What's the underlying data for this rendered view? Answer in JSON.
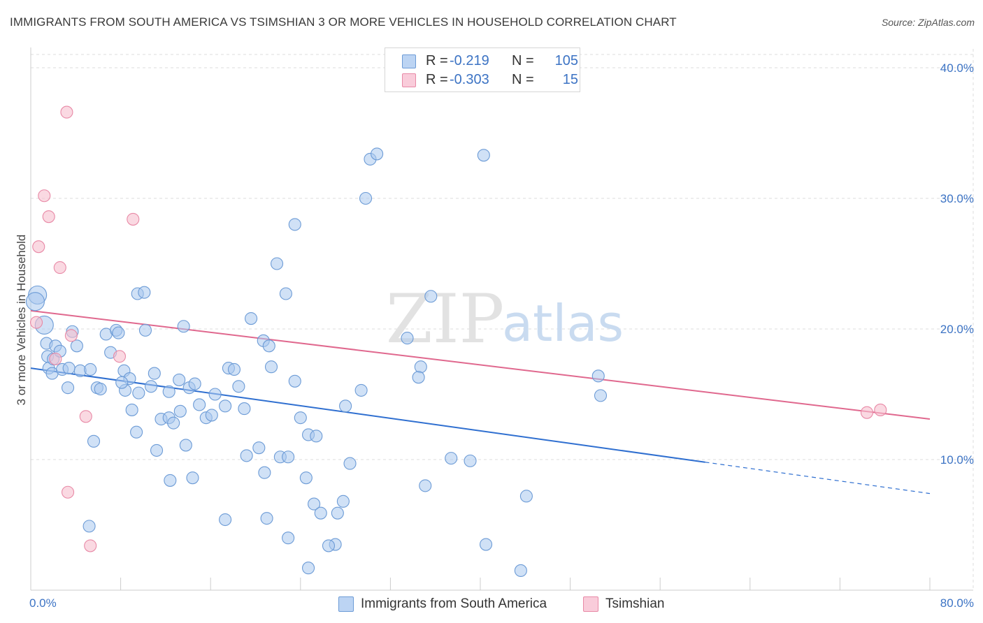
{
  "header": {
    "title": "IMMIGRANTS FROM SOUTH AMERICA VS TSIMSHIAN 3 OR MORE VEHICLES IN HOUSEHOLD CORRELATION CHART",
    "source": "Source: ZipAtlas.com"
  },
  "watermark": {
    "zip": "ZIP",
    "atlas": "atlas"
  },
  "legend": {
    "rows": [
      {
        "r_label": "R =",
        "r_value": "-0.219",
        "n_label": "N =",
        "n_value": "105"
      },
      {
        "r_label": "R =",
        "r_value": "-0.303",
        "n_label": "N =",
        "n_value": "15"
      }
    ]
  },
  "bottom_legend": {
    "series1": "Immigrants from South America",
    "series2": "Tsimshian"
  },
  "colors": {
    "blue_fill": "#aac8ef",
    "blue_stroke": "#6c9bd6",
    "blue_line": "#2f6fd0",
    "pink_fill": "#f6c0cf",
    "pink_stroke": "#e889a6",
    "pink_line": "#e0688e",
    "grid": "#dcdcdc",
    "axis": "#cccccc"
  },
  "chart_data": {
    "type": "scatter",
    "title": "IMMIGRANTS FROM SOUTH AMERICA VS TSIMSHIAN 3 OR MORE VEHICLES IN HOUSEHOLD CORRELATION CHART",
    "xlabel": "",
    "ylabel": "3 or more Vehicles in Household",
    "xlim": [
      0,
      80
    ],
    "ylim": [
      0,
      40
    ],
    "x_tick_labels": [
      {
        "value": 0,
        "label": "0.0%"
      },
      {
        "value": 80,
        "label": "80.0%"
      }
    ],
    "y_tick_labels": [
      {
        "value": 10,
        "label": "10.0%"
      },
      {
        "value": 20,
        "label": "20.0%"
      },
      {
        "value": 30,
        "label": "30.0%"
      },
      {
        "value": 40,
        "label": "40.0%"
      }
    ],
    "x_minor_ticks": [
      8,
      16,
      24,
      32,
      40,
      48,
      56,
      64,
      72,
      80
    ],
    "grid": true,
    "series": [
      {
        "name": "Immigrants from South America",
        "color": "blue",
        "trend": {
          "x0": 0,
          "y0": 17.0,
          "x1": 60.0,
          "y1": 9.8,
          "dashed_to_x": 80,
          "dashed_to_y": 7.4
        },
        "points": [
          [
            0.6,
            22.6
          ],
          [
            0.4,
            22.1
          ],
          [
            1.2,
            20.3
          ],
          [
            1.4,
            18.9
          ],
          [
            2.2,
            18.7
          ],
          [
            1.5,
            17.9
          ],
          [
            1.6,
            17.0
          ],
          [
            2.0,
            17.7
          ],
          [
            2.6,
            18.3
          ],
          [
            1.9,
            16.6
          ],
          [
            2.8,
            16.9
          ],
          [
            3.4,
            17.0
          ],
          [
            3.7,
            19.8
          ],
          [
            4.1,
            18.7
          ],
          [
            3.3,
            15.5
          ],
          [
            4.4,
            16.8
          ],
          [
            5.3,
            16.9
          ],
          [
            5.9,
            15.5
          ],
          [
            6.7,
            19.6
          ],
          [
            6.2,
            15.4
          ],
          [
            7.1,
            18.2
          ],
          [
            7.6,
            19.9
          ],
          [
            7.8,
            19.7
          ],
          [
            8.3,
            16.8
          ],
          [
            8.4,
            15.3
          ],
          [
            8.8,
            16.2
          ],
          [
            9.5,
            22.7
          ],
          [
            10.1,
            22.8
          ],
          [
            10.2,
            19.9
          ],
          [
            9.6,
            15.1
          ],
          [
            10.7,
            15.6
          ],
          [
            11.0,
            16.6
          ],
          [
            11.6,
            13.1
          ],
          [
            12.3,
            15.2
          ],
          [
            12.3,
            13.2
          ],
          [
            12.7,
            12.8
          ],
          [
            13.3,
            13.7
          ],
          [
            13.6,
            20.2
          ],
          [
            13.2,
            16.1
          ],
          [
            14.1,
            15.5
          ],
          [
            14.6,
            15.8
          ],
          [
            15.0,
            14.2
          ],
          [
            15.6,
            13.2
          ],
          [
            16.1,
            13.4
          ],
          [
            16.4,
            15.0
          ],
          [
            17.3,
            14.1
          ],
          [
            17.6,
            17.0
          ],
          [
            18.1,
            16.9
          ],
          [
            18.5,
            15.6
          ],
          [
            19.0,
            13.9
          ],
          [
            19.6,
            20.8
          ],
          [
            20.7,
            19.1
          ],
          [
            21.2,
            18.7
          ],
          [
            21.4,
            17.1
          ],
          [
            20.3,
            10.9
          ],
          [
            19.2,
            10.3
          ],
          [
            20.8,
            9.0
          ],
          [
            22.2,
            10.2
          ],
          [
            22.9,
            10.2
          ],
          [
            21.9,
            25.0
          ],
          [
            22.7,
            22.7
          ],
          [
            23.5,
            28.0
          ],
          [
            23.5,
            16.0
          ],
          [
            24.0,
            13.2
          ],
          [
            24.7,
            11.9
          ],
          [
            25.4,
            11.8
          ],
          [
            24.5,
            8.6
          ],
          [
            25.2,
            6.6
          ],
          [
            25.8,
            5.9
          ],
          [
            27.3,
            5.9
          ],
          [
            27.8,
            6.8
          ],
          [
            27.1,
            3.5
          ],
          [
            26.5,
            3.4
          ],
          [
            28.0,
            14.1
          ],
          [
            29.4,
            15.3
          ],
          [
            28.4,
            9.7
          ],
          [
            29.8,
            30.0
          ],
          [
            30.2,
            33.0
          ],
          [
            30.8,
            33.4
          ],
          [
            33.5,
            19.3
          ],
          [
            34.7,
            17.1
          ],
          [
            34.5,
            16.3
          ],
          [
            35.6,
            22.5
          ],
          [
            35.1,
            8.0
          ],
          [
            37.4,
            10.1
          ],
          [
            39.1,
            9.9
          ],
          [
            40.5,
            3.5
          ],
          [
            40.3,
            33.3
          ],
          [
            44.1,
            7.2
          ],
          [
            43.6,
            1.5
          ],
          [
            50.5,
            16.4
          ],
          [
            50.7,
            14.9
          ],
          [
            22.9,
            4.0
          ],
          [
            21.0,
            5.5
          ],
          [
            17.3,
            5.4
          ],
          [
            14.4,
            8.6
          ],
          [
            12.4,
            8.4
          ],
          [
            13.8,
            11.1
          ],
          [
            11.2,
            10.7
          ],
          [
            9.4,
            12.1
          ],
          [
            9.0,
            13.8
          ],
          [
            5.6,
            11.4
          ],
          [
            5.2,
            4.9
          ],
          [
            8.1,
            15.9
          ],
          [
            24.7,
            1.7
          ]
        ]
      },
      {
        "name": "Tsimshian",
        "color": "pink",
        "trend": {
          "x0": 0,
          "y0": 21.4,
          "x1": 80,
          "y1": 13.1
        },
        "points": [
          [
            0.5,
            20.5
          ],
          [
            1.2,
            30.2
          ],
          [
            1.6,
            28.6
          ],
          [
            0.7,
            26.3
          ],
          [
            2.6,
            24.7
          ],
          [
            3.2,
            36.6
          ],
          [
            9.1,
            28.4
          ],
          [
            3.6,
            19.5
          ],
          [
            2.2,
            17.7
          ],
          [
            7.9,
            17.9
          ],
          [
            4.9,
            13.3
          ],
          [
            3.3,
            7.5
          ],
          [
            5.3,
            3.4
          ],
          [
            74.4,
            13.6
          ],
          [
            75.6,
            13.8
          ]
        ]
      }
    ]
  }
}
